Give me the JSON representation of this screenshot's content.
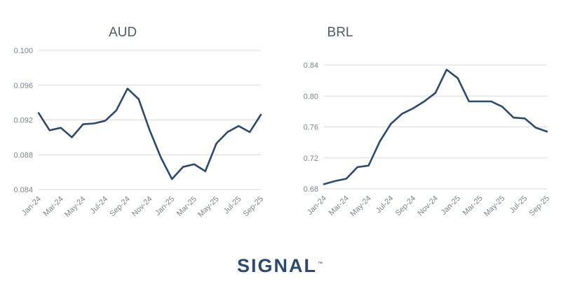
{
  "logo": {
    "text": "SIGNAL",
    "trademark": "™",
    "color": "#2b4a6f"
  },
  "colors": {
    "series": "#2b4a6f",
    "grid": "#d9d9d9",
    "text": "#7b848e",
    "title": "#505a66"
  },
  "chart_data": [
    {
      "type": "line",
      "title": "AUD",
      "xlabel": "",
      "ylabel": "",
      "grid": true,
      "ylim": [
        0.084,
        0.1
      ],
      "yticks": [
        0.1,
        0.096,
        0.092,
        0.088,
        0.084
      ],
      "ytick_labels": [
        "0.100",
        "0.096",
        "0.092",
        "0.088",
        "0.084"
      ],
      "x": [
        "Jan-24",
        "Feb-24",
        "Mar-24",
        "Apr-24",
        "May-24",
        "Jun-24",
        "Jul-24",
        "Aug-24",
        "Sep-24",
        "Oct-24",
        "Nov-24",
        "Dec-24",
        "Jan-25",
        "Feb-25",
        "Mar-25",
        "Apr-25",
        "May-25",
        "Jun-25",
        "Jul-25",
        "Aug-25",
        "Sep-25"
      ],
      "xtick_labels": [
        "Jan-24",
        "Mar-24",
        "May-24",
        "Jul-24",
        "Sep-24",
        "Nov-24",
        "Jan-25",
        "Mar-25",
        "May-25",
        "Jul-25",
        "Sep-25"
      ],
      "series": [
        {
          "values": [
            0.0928,
            0.0908,
            0.0911,
            0.09,
            0.0915,
            0.0916,
            0.0919,
            0.0931,
            0.0956,
            0.0944,
            0.0908,
            0.0877,
            0.0852,
            0.0866,
            0.0869,
            0.0861,
            0.0893,
            0.0906,
            0.0913,
            0.0906,
            0.0926
          ]
        }
      ]
    },
    {
      "type": "line",
      "title": "BRL",
      "xlabel": "",
      "ylabel": "",
      "grid": true,
      "ylim": [
        0.68,
        0.84
      ],
      "yticks": [
        0.84,
        0.8,
        0.76,
        0.72,
        0.68
      ],
      "ytick_labels": [
        "0.84",
        "0.80",
        "0.76",
        "0.72",
        "0.68"
      ],
      "x": [
        "Jan-24",
        "Feb-24",
        "Mar-24",
        "Apr-24",
        "May-24",
        "Jun-24",
        "Jul-24",
        "Aug-24",
        "Sep-24",
        "Oct-24",
        "Nov-24",
        "Dec-24",
        "Jan-25",
        "Feb-25",
        "Mar-25",
        "Apr-25",
        "May-25",
        "Jun-25",
        "Jul-25",
        "Aug-25",
        "Sep-25"
      ],
      "xtick_labels": [
        "Jan-24",
        "Mar-24",
        "May-24",
        "Jul-24",
        "Sep-24",
        "Nov-24",
        "Jan-25",
        "Mar-25",
        "May-25",
        "Jul-25",
        "Sep-25"
      ],
      "series": [
        {
          "values": [
            0.686,
            0.69,
            0.693,
            0.708,
            0.71,
            0.741,
            0.764,
            0.777,
            0.784,
            0.793,
            0.804,
            0.834,
            0.823,
            0.793,
            0.793,
            0.793,
            0.786,
            0.772,
            0.771,
            0.759,
            0.754
          ]
        }
      ]
    }
  ]
}
